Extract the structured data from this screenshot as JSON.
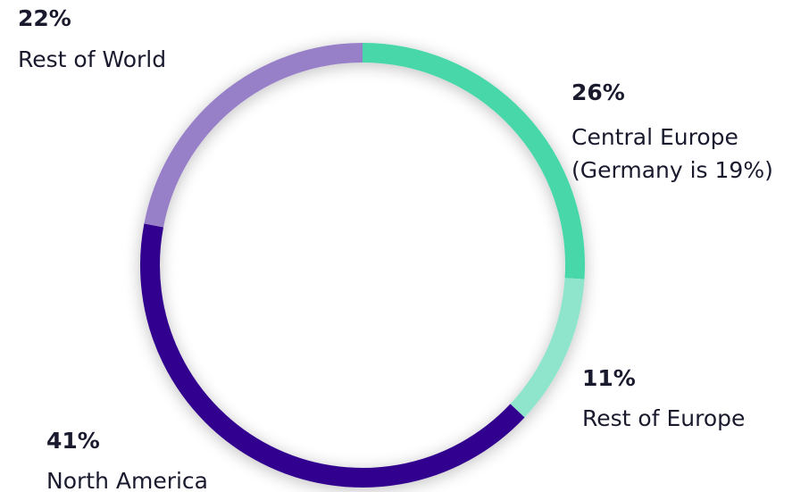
{
  "chart_data": {
    "type": "donut",
    "categories": [
      "Central Europe",
      "Rest of Europe",
      "North America",
      "Rest of World"
    ],
    "values": [
      26,
      11,
      41,
      22
    ],
    "value_labels": [
      "26%",
      "11%",
      "41%",
      "22%"
    ],
    "colors": [
      "#47d7a9",
      "#8ee5cb",
      "#33048f",
      "#9880c9"
    ],
    "annotation": "(Germany is 19%)"
  }
}
